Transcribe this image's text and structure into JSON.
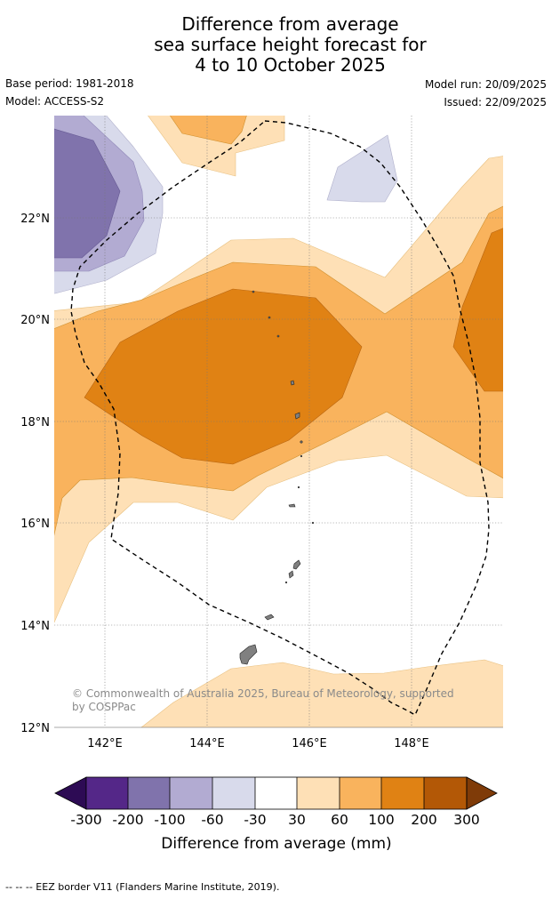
{
  "title": {
    "line1": "Difference from average",
    "line2": "sea surface height forecast for",
    "line3": "4 to 10 October 2025"
  },
  "meta": {
    "base_period": "Base period: 1981-2018",
    "model": "Model: ACCESS-S2",
    "model_run": "Model run: 20/09/2025",
    "issued": "Issued: 22/09/2025"
  },
  "map": {
    "lat_labels": [
      "22°N",
      "20°N",
      "18°N",
      "16°N",
      "14°N",
      "12°N"
    ],
    "lon_labels": [
      "142°E",
      "144°E",
      "146°E",
      "148°E"
    ],
    "credit_line1": "© Commonwealth of Australia 2025, Bureau of Meteorology, supported",
    "credit_line2": "by COSPPac"
  },
  "colorbar": {
    "tick_labels": [
      "-300",
      "-200",
      "-100",
      "-60",
      "-30",
      "30",
      "60",
      "100",
      "200",
      "300"
    ],
    "title": "Difference from average (mm)",
    "colors": [
      "#2d0b54",
      "#542788",
      "#8073ac",
      "#b2abd2",
      "#d8daeb",
      "#ffffff",
      "#fee0b6",
      "#f9b35d",
      "#e08214",
      "#b35806",
      "#7f3b08"
    ]
  },
  "footer": {
    "legend": "--  --  -- EEZ border V11 (Flanders Marine Institute, 2019)."
  }
}
